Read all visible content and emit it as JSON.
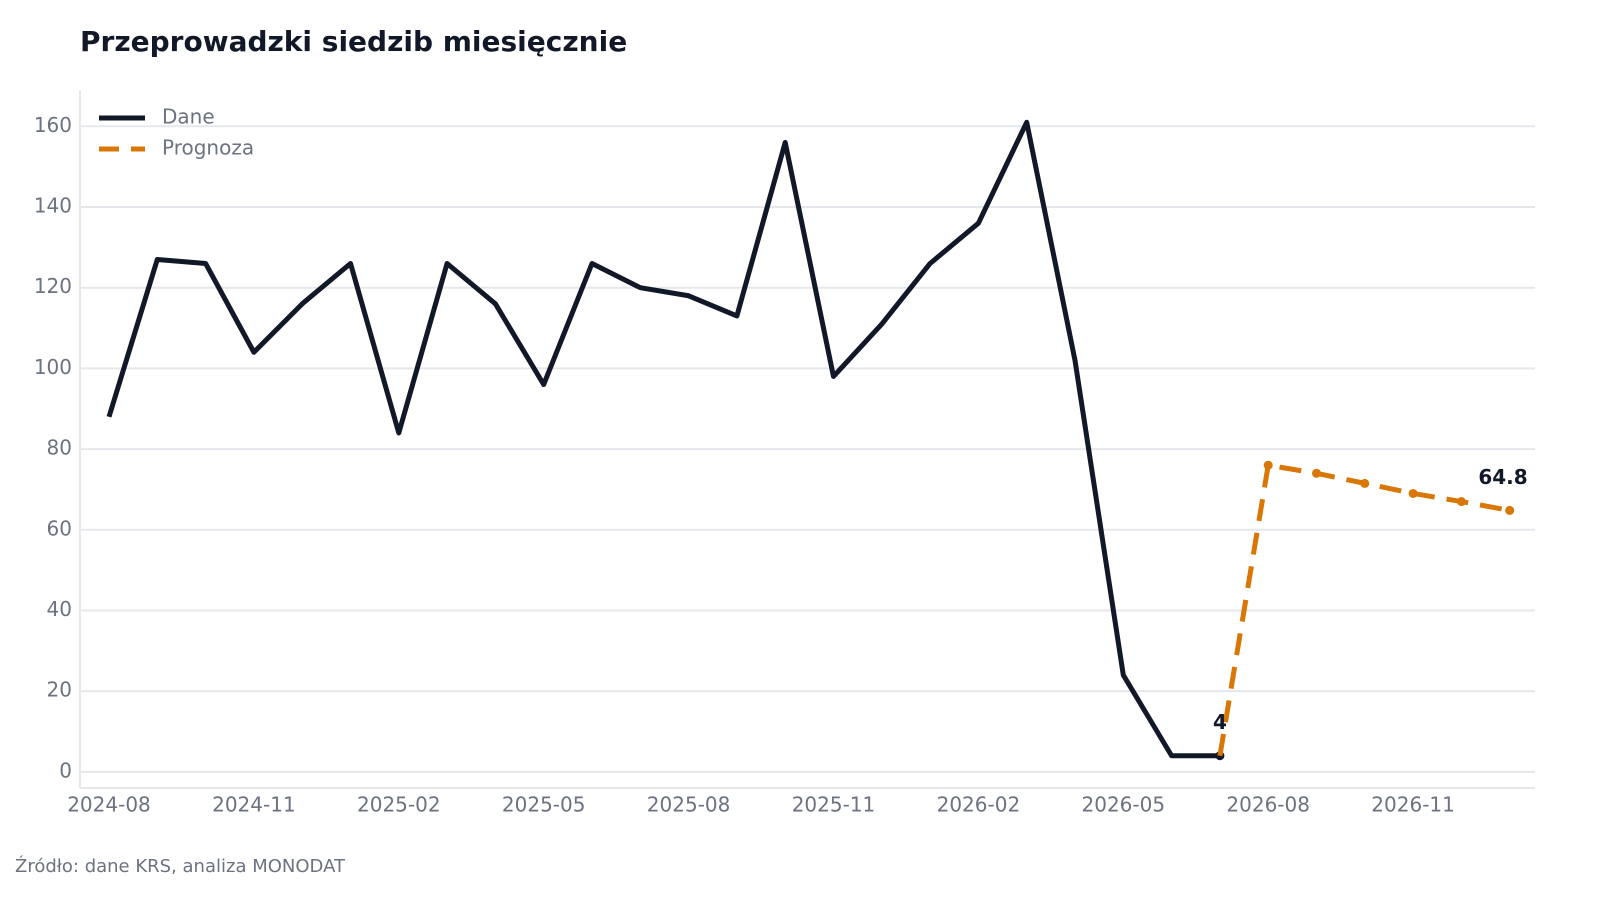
{
  "chart_data": {
    "type": "line",
    "title": "Przeprowadzki siedzib miesięcznie",
    "source": "Źródło: dane KRS, analiza MONODAT",
    "x": [
      "2024-08",
      "2024-09",
      "2024-10",
      "2024-11",
      "2024-12",
      "2025-01",
      "2025-02",
      "2025-03",
      "2025-04",
      "2025-05",
      "2025-06",
      "2025-07",
      "2025-08",
      "2025-09",
      "2025-10",
      "2025-11",
      "2025-12",
      "2026-01",
      "2026-02",
      "2026-03",
      "2026-04",
      "2026-05",
      "2026-06",
      "2026-07",
      "2026-08",
      "2026-09",
      "2026-10",
      "2026-11",
      "2026-12",
      "2027-01"
    ],
    "xticks": [
      "2024-08",
      "2024-11",
      "2025-02",
      "2025-05",
      "2025-08",
      "2025-11",
      "2026-02",
      "2026-05",
      "2026-08",
      "2026-11"
    ],
    "series": [
      {
        "name": "Dane",
        "color": "#111827",
        "dash": false,
        "values": [
          88,
          127,
          126,
          104,
          116,
          126,
          84,
          126,
          116,
          96,
          126,
          120,
          118,
          113,
          156,
          98,
          111,
          126,
          136,
          161,
          102,
          24,
          4,
          4,
          null,
          null,
          null,
          null,
          null,
          null
        ]
      },
      {
        "name": "Prognoza",
        "color": "#d97706",
        "dash": true,
        "values": [
          null,
          null,
          null,
          null,
          null,
          null,
          null,
          null,
          null,
          null,
          null,
          null,
          null,
          null,
          null,
          null,
          null,
          null,
          null,
          null,
          null,
          null,
          null,
          4,
          76,
          74,
          71.5,
          69,
          67,
          64.8
        ]
      }
    ],
    "ylim": [
      -4,
      169
    ],
    "yticks": [
      0,
      20,
      40,
      60,
      80,
      100,
      120,
      140,
      160
    ],
    "grid": true,
    "legend": "upper left"
  }
}
